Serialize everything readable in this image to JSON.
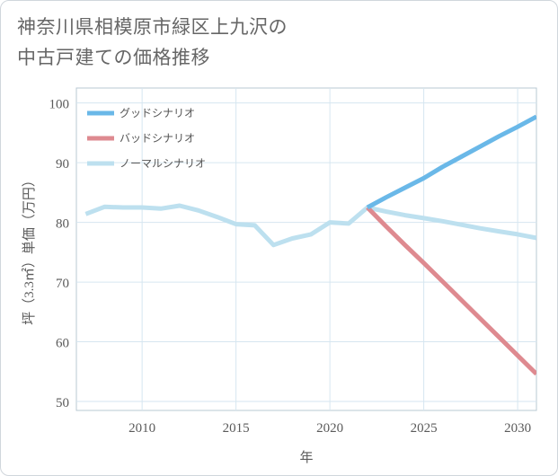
{
  "title_lines": [
    "神奈川県相模原市緑区上九沢の",
    "中古戸建ての価格推移"
  ],
  "chart_data": {
    "type": "line",
    "title": "神奈川県相模原市緑区上九沢の中古戸建ての価格推移",
    "xlabel": "年",
    "ylabel": "坪（3.3㎡）単価（万円）",
    "xlim": [
      2006.5,
      2031
    ],
    "ylim": [
      48.5,
      102.5
    ],
    "xticks": [
      2010,
      2015,
      2020,
      2025,
      2030
    ],
    "yticks": [
      50,
      60,
      70,
      80,
      90,
      100
    ],
    "grid": true,
    "legend_position": "top-left",
    "series": [
      {
        "name": "グッドシナリオ",
        "color": "#6ab8e8",
        "x": [
          2022,
          2023,
          2024,
          2025,
          2026,
          2027,
          2028,
          2029,
          2030,
          2031
        ],
        "y": [
          82.5,
          84.2,
          85.8,
          87.4,
          89.3,
          91.0,
          92.7,
          94.4,
          96.0,
          97.7
        ]
      },
      {
        "name": "バッドシナリオ",
        "color": "#de8a90",
        "x": [
          2022,
          2023,
          2024,
          2025,
          2026,
          2027,
          2028,
          2029,
          2030,
          2031
        ],
        "y": [
          82.5,
          79.3,
          76.2,
          73.2,
          70.1,
          67.0,
          63.9,
          60.8,
          57.7,
          54.6
        ]
      },
      {
        "name": "ノーマルシナリオ",
        "color": "#bde0ef",
        "x": [
          2007,
          2008,
          2009,
          2010,
          2011,
          2012,
          2013,
          2014,
          2015,
          2016,
          2017,
          2018,
          2019,
          2020,
          2021,
          2022,
          2023,
          2024,
          2025,
          2026,
          2027,
          2028,
          2029,
          2030,
          2031
        ],
        "y": [
          81.4,
          82.6,
          82.5,
          82.5,
          82.3,
          82.8,
          82.0,
          80.9,
          79.7,
          79.5,
          76.2,
          77.3,
          78.0,
          80.0,
          79.8,
          82.5,
          81.8,
          81.2,
          80.7,
          80.2,
          79.6,
          79.0,
          78.5,
          78.0,
          77.4
        ]
      }
    ]
  }
}
